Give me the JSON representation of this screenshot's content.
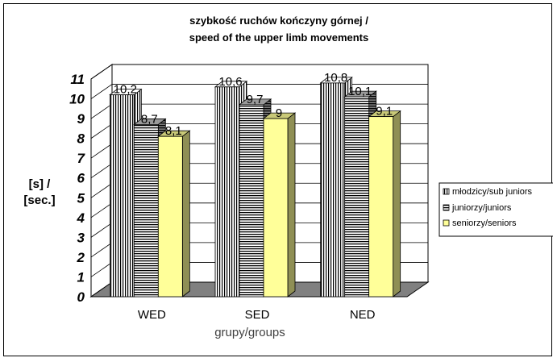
{
  "chart_data": {
    "type": "bar",
    "title": [
      "szybkość ruchów kończyny górnej /",
      "speed of the upper limb movements"
    ],
    "ylabel": [
      "[s] /",
      "[sec.]"
    ],
    "xlabel": "grupy/groups",
    "categories": [
      "WED",
      "SED",
      "NED"
    ],
    "ylim": [
      0,
      11
    ],
    "yticks": [
      "0",
      "1",
      "2",
      "3",
      "4",
      "5",
      "6",
      "7",
      "8",
      "9",
      "10",
      "11"
    ],
    "series": [
      {
        "name": "młodzicy/sub juniors",
        "values": [
          10.2,
          10.6,
          10.8
        ],
        "labels": [
          "10,2",
          "10,6",
          "10,8"
        ],
        "pattern": "vstripes"
      },
      {
        "name": "juniorzy/juniors",
        "values": [
          8.7,
          9.7,
          10.1
        ],
        "labels": [
          "8,7",
          "9,7",
          "10,1"
        ],
        "pattern": "hstripes"
      },
      {
        "name": "seniorzy/seniors",
        "values": [
          8.1,
          9.0,
          9.1
        ],
        "labels": [
          "8,1",
          "9",
          "9,1"
        ],
        "pattern": "yellow"
      }
    ],
    "grid": true,
    "legend_position": "right",
    "style": "3d-clustered-column"
  },
  "colors": {
    "wall": "#ffffff",
    "floor": "#808080",
    "grid": "#000000",
    "yellow_front": "#ffff99",
    "yellow_side": "#8f8f55",
    "yellow_top": "#c9c978",
    "stripe_dark": "#000000",
    "stripe_light": "#ffffff"
  }
}
